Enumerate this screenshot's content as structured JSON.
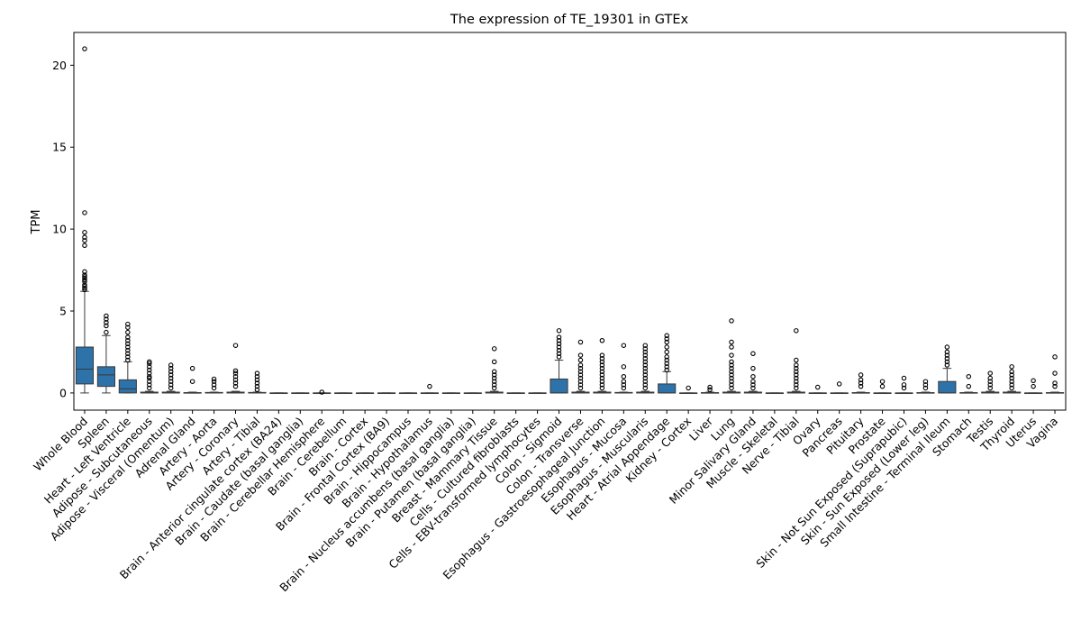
{
  "chart_data": {
    "type": "box",
    "title": "The expression of TE_19301 in GTEx",
    "xlabel": "",
    "ylabel": "TPM",
    "ylim": [
      -1.05,
      22.0
    ],
    "yticks": [
      0,
      5,
      10,
      15,
      20
    ],
    "box_color": "#2d72a8",
    "categories": [
      "Whole Blood",
      "Spleen",
      "Heart - Left Ventricle",
      "Adipose - Subcutaneous",
      "Adipose - Visceral (Omentum)",
      "Adrenal Gland",
      "Artery - Aorta",
      "Artery - Coronary",
      "Artery - Tibial",
      "Brain - Anterior cingulate cortex (BA24)",
      "Brain - Caudate (basal ganglia)",
      "Brain - Cerebellar Hemisphere",
      "Brain - Cerebellum",
      "Brain - Cortex",
      "Brain - Frontal Cortex (BA9)",
      "Brain - Hippocampus",
      "Brain - Hypothalamus",
      "Brain - Nucleus accumbens (basal ganglia)",
      "Brain - Putamen (basal ganglia)",
      "Breast - Mammary Tissue",
      "Cells - Cultured fibroblasts",
      "Cells - EBV-transformed lymphocytes",
      "Colon - Sigmoid",
      "Colon - Transverse",
      "Esophagus - Gastroesophageal Junction",
      "Esophagus - Mucosa",
      "Esophagus - Muscularis",
      "Heart - Atrial Appendage",
      "Kidney - Cortex",
      "Liver",
      "Lung",
      "Minor Salivary Gland",
      "Muscle - Skeletal",
      "Nerve - Tibial",
      "Ovary",
      "Pancreas",
      "Pituitary",
      "Prostate",
      "Skin - Not Sun Exposed (Suprapubic)",
      "Skin - Sun Exposed (Lower leg)",
      "Small Intestine - Terminal Ileum",
      "Stomach",
      "Testis",
      "Thyroid",
      "Uterus",
      "Vagina"
    ],
    "boxes": [
      {
        "q1": 0.55,
        "median": 1.45,
        "q3": 2.8,
        "whislo": 0.0,
        "whishi": 6.2,
        "fliers": [
          6.3,
          6.4,
          6.5,
          6.6,
          6.8,
          6.9,
          7.0,
          7.1,
          7.2,
          7.4,
          9.0,
          9.3,
          9.5,
          9.8,
          11.0,
          21.0
        ]
      },
      {
        "q1": 0.4,
        "median": 1.1,
        "q3": 1.6,
        "whislo": 0.0,
        "whishi": 3.5,
        "fliers": [
          3.7,
          4.1,
          4.3,
          4.5,
          4.7
        ]
      },
      {
        "q1": 0.0,
        "median": 0.25,
        "q3": 0.8,
        "whislo": 0.0,
        "whishi": 1.9,
        "fliers": [
          2.0,
          2.2,
          2.4,
          2.6,
          2.8,
          3.0,
          3.2,
          3.4,
          3.7,
          4.0,
          4.2
        ]
      },
      {
        "q1": 0.0,
        "median": 0.0,
        "q3": 0.05,
        "whislo": 0.0,
        "whishi": 0.1,
        "fliers": [
          0.3,
          0.5,
          0.7,
          0.9,
          1.0,
          1.2,
          1.4,
          1.6,
          1.8,
          1.9
        ]
      },
      {
        "q1": 0.0,
        "median": 0.0,
        "q3": 0.05,
        "whislo": 0.0,
        "whishi": 0.1,
        "fliers": [
          0.3,
          0.5,
          0.7,
          0.9,
          1.1,
          1.3,
          1.5,
          1.7
        ]
      },
      {
        "q1": 0.0,
        "median": 0.0,
        "q3": 0.02,
        "whislo": 0.0,
        "whishi": 0.05,
        "fliers": [
          0.7,
          1.5
        ]
      },
      {
        "q1": 0.0,
        "median": 0.0,
        "q3": 0.03,
        "whislo": 0.0,
        "whishi": 0.05,
        "fliers": [
          0.3,
          0.5,
          0.7,
          0.85
        ]
      },
      {
        "q1": 0.0,
        "median": 0.0,
        "q3": 0.05,
        "whislo": 0.0,
        "whishi": 0.1,
        "fliers": [
          0.4,
          0.6,
          0.8,
          1.0,
          1.2,
          1.35,
          2.9
        ]
      },
      {
        "q1": 0.0,
        "median": 0.0,
        "q3": 0.03,
        "whislo": 0.0,
        "whishi": 0.05,
        "fliers": [
          0.2,
          0.4,
          0.6,
          0.8,
          1.0,
          1.2
        ]
      },
      {
        "q1": 0.0,
        "median": 0.0,
        "q3": 0.0,
        "whislo": 0.0,
        "whishi": 0.0,
        "fliers": []
      },
      {
        "q1": 0.0,
        "median": 0.0,
        "q3": 0.0,
        "whislo": 0.0,
        "whishi": 0.0,
        "fliers": []
      },
      {
        "q1": 0.0,
        "median": 0.0,
        "q3": 0.0,
        "whislo": 0.0,
        "whishi": 0.0,
        "fliers": [
          0.05
        ]
      },
      {
        "q1": 0.0,
        "median": 0.0,
        "q3": 0.0,
        "whislo": 0.0,
        "whishi": 0.0,
        "fliers": []
      },
      {
        "q1": 0.0,
        "median": 0.0,
        "q3": 0.0,
        "whislo": 0.0,
        "whishi": 0.0,
        "fliers": []
      },
      {
        "q1": 0.0,
        "median": 0.0,
        "q3": 0.0,
        "whislo": 0.0,
        "whishi": 0.0,
        "fliers": []
      },
      {
        "q1": 0.0,
        "median": 0.0,
        "q3": 0.0,
        "whislo": 0.0,
        "whishi": 0.0,
        "fliers": []
      },
      {
        "q1": 0.0,
        "median": 0.0,
        "q3": 0.0,
        "whislo": 0.0,
        "whishi": 0.0,
        "fliers": [
          0.4
        ]
      },
      {
        "q1": 0.0,
        "median": 0.0,
        "q3": 0.0,
        "whislo": 0.0,
        "whishi": 0.0,
        "fliers": []
      },
      {
        "q1": 0.0,
        "median": 0.0,
        "q3": 0.0,
        "whislo": 0.0,
        "whishi": 0.0,
        "fliers": []
      },
      {
        "q1": 0.0,
        "median": 0.0,
        "q3": 0.05,
        "whislo": 0.0,
        "whishi": 0.1,
        "fliers": [
          0.3,
          0.5,
          0.7,
          0.9,
          1.1,
          1.3,
          1.9,
          2.7
        ]
      },
      {
        "q1": 0.0,
        "median": 0.0,
        "q3": 0.0,
        "whislo": 0.0,
        "whishi": 0.0,
        "fliers": []
      },
      {
        "q1": 0.0,
        "median": 0.0,
        "q3": 0.0,
        "whislo": 0.0,
        "whishi": 0.0,
        "fliers": []
      },
      {
        "q1": 0.0,
        "median": 0.0,
        "q3": 0.85,
        "whislo": 0.0,
        "whishi": 2.0,
        "fliers": [
          2.2,
          2.4,
          2.6,
          2.8,
          3.0,
          3.2,
          3.4,
          3.8
        ]
      },
      {
        "q1": 0.0,
        "median": 0.0,
        "q3": 0.05,
        "whislo": 0.0,
        "whishi": 0.1,
        "fliers": [
          0.3,
          0.5,
          0.7,
          0.9,
          1.1,
          1.3,
          1.5,
          1.7,
          2.0,
          2.3,
          3.1
        ]
      },
      {
        "q1": 0.0,
        "median": 0.0,
        "q3": 0.05,
        "whislo": 0.0,
        "whishi": 0.1,
        "fliers": [
          0.3,
          0.5,
          0.7,
          0.9,
          1.1,
          1.3,
          1.5,
          1.7,
          1.9,
          2.1,
          2.3,
          3.2
        ]
      },
      {
        "q1": 0.0,
        "median": 0.0,
        "q3": 0.03,
        "whislo": 0.0,
        "whishi": 0.05,
        "fliers": [
          0.3,
          0.5,
          0.7,
          1.0,
          1.6,
          2.9
        ]
      },
      {
        "q1": 0.0,
        "median": 0.0,
        "q3": 0.05,
        "whislo": 0.0,
        "whishi": 0.1,
        "fliers": [
          0.3,
          0.5,
          0.7,
          0.9,
          1.1,
          1.3,
          1.5,
          1.7,
          1.9,
          2.1,
          2.3,
          2.5,
          2.7,
          2.9
        ]
      },
      {
        "q1": 0.0,
        "median": 0.0,
        "q3": 0.55,
        "whislo": 0.0,
        "whishi": 1.3,
        "fliers": [
          1.4,
          1.6,
          1.8,
          2.0,
          2.2,
          2.5,
          2.8,
          3.1,
          3.3,
          3.5
        ]
      },
      {
        "q1": 0.0,
        "median": 0.0,
        "q3": 0.0,
        "whislo": 0.0,
        "whishi": 0.0,
        "fliers": [
          0.3
        ]
      },
      {
        "q1": 0.0,
        "median": 0.0,
        "q3": 0.02,
        "whislo": 0.0,
        "whishi": 0.05,
        "fliers": [
          0.2,
          0.35
        ]
      },
      {
        "q1": 0.0,
        "median": 0.0,
        "q3": 0.05,
        "whislo": 0.0,
        "whishi": 0.1,
        "fliers": [
          0.3,
          0.5,
          0.7,
          0.9,
          1.1,
          1.3,
          1.5,
          1.7,
          1.9,
          2.3,
          2.8,
          3.1,
          4.4
        ]
      },
      {
        "q1": 0.0,
        "median": 0.0,
        "q3": 0.05,
        "whislo": 0.0,
        "whishi": 0.1,
        "fliers": [
          0.3,
          0.5,
          0.7,
          1.0,
          1.5,
          2.4
        ]
      },
      {
        "q1": 0.0,
        "median": 0.0,
        "q3": 0.0,
        "whislo": 0.0,
        "whishi": 0.0,
        "fliers": []
      },
      {
        "q1": 0.0,
        "median": 0.0,
        "q3": 0.05,
        "whislo": 0.0,
        "whishi": 0.1,
        "fliers": [
          0.3,
          0.5,
          0.7,
          0.9,
          1.1,
          1.3,
          1.5,
          1.7,
          2.0,
          3.8
        ]
      },
      {
        "q1": 0.0,
        "median": 0.0,
        "q3": 0.0,
        "whislo": 0.0,
        "whishi": 0.0,
        "fliers": [
          0.35
        ]
      },
      {
        "q1": 0.0,
        "median": 0.0,
        "q3": 0.0,
        "whislo": 0.0,
        "whishi": 0.0,
        "fliers": [
          0.55
        ]
      },
      {
        "q1": 0.0,
        "median": 0.0,
        "q3": 0.02,
        "whislo": 0.0,
        "whishi": 0.05,
        "fliers": [
          0.4,
          0.6,
          0.8,
          1.1
        ]
      },
      {
        "q1": 0.0,
        "median": 0.0,
        "q3": 0.0,
        "whislo": 0.0,
        "whishi": 0.0,
        "fliers": [
          0.4,
          0.7
        ]
      },
      {
        "q1": 0.0,
        "median": 0.0,
        "q3": 0.0,
        "whislo": 0.0,
        "whishi": 0.0,
        "fliers": [
          0.3,
          0.5,
          0.9
        ]
      },
      {
        "q1": 0.0,
        "median": 0.0,
        "q3": 0.02,
        "whislo": 0.0,
        "whishi": 0.05,
        "fliers": [
          0.3,
          0.5,
          0.7
        ]
      },
      {
        "q1": 0.0,
        "median": 0.0,
        "q3": 0.7,
        "whislo": 0.0,
        "whishi": 1.5,
        "fliers": [
          1.7,
          1.9,
          2.1,
          2.3,
          2.5,
          2.8
        ]
      },
      {
        "q1": 0.0,
        "median": 0.0,
        "q3": 0.02,
        "whislo": 0.0,
        "whishi": 0.05,
        "fliers": [
          0.4,
          1.0
        ]
      },
      {
        "q1": 0.0,
        "median": 0.0,
        "q3": 0.05,
        "whislo": 0.0,
        "whishi": 0.1,
        "fliers": [
          0.3,
          0.5,
          0.7,
          0.9,
          1.2
        ]
      },
      {
        "q1": 0.0,
        "median": 0.0,
        "q3": 0.05,
        "whislo": 0.0,
        "whishi": 0.1,
        "fliers": [
          0.3,
          0.5,
          0.7,
          0.9,
          1.1,
          1.3,
          1.6
        ]
      },
      {
        "q1": 0.0,
        "median": 0.0,
        "q3": 0.0,
        "whislo": 0.0,
        "whishi": 0.0,
        "fliers": [
          0.4,
          0.75
        ]
      },
      {
        "q1": 0.0,
        "median": 0.0,
        "q3": 0.02,
        "whislo": 0.0,
        "whishi": 0.05,
        "fliers": [
          0.4,
          0.6,
          1.2,
          2.2
        ]
      }
    ]
  }
}
